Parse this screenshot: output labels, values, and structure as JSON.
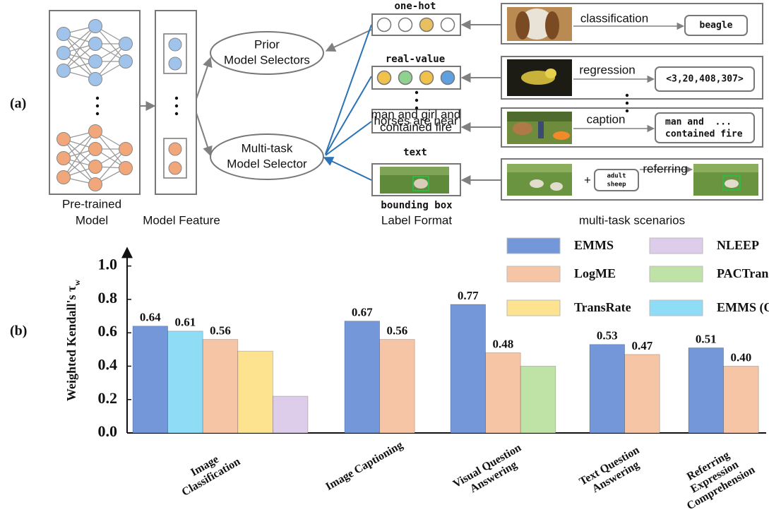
{
  "figure_labels": {
    "a": "(a)",
    "b": "(b)"
  },
  "diagram": {
    "pretrained_model": [
      "Pre-trained",
      "Model"
    ],
    "model_feature": "Model Feature",
    "prior_selectors": [
      "Prior",
      "Model Selectors"
    ],
    "multitask_selector": [
      "Multi-task",
      "Model Selector"
    ],
    "label_formats": {
      "one_hot": "one-hot",
      "real_value": "real-value",
      "text_example": [
        "man and girl and",
        "horses are near",
        "contained fire"
      ],
      "text": "text",
      "bounding_box": "bounding box",
      "title": "Label Format"
    },
    "scenarios": {
      "classification": {
        "task": "classification",
        "output": "beagle"
      },
      "regression": {
        "task": "regression",
        "output": "<3,20,408,307>"
      },
      "caption": {
        "task": "caption",
        "output": [
          "man and  ...",
          "contained fire"
        ]
      },
      "referring": {
        "task": "referring",
        "query": [
          "adult",
          "sheep"
        ]
      },
      "title": "multi-task scenarios"
    }
  },
  "chart_data": {
    "type": "bar",
    "y_label": "Weighted Kendall's τw",
    "categories": [
      "Image Classification",
      "Image Captioning",
      "Visual Question Answering",
      "Text Question Answering",
      "Referring Expression Comprehension"
    ],
    "series": [
      {
        "name": "EMMS",
        "color": "#7397d8",
        "values": [
          0.64,
          0.67,
          0.77,
          0.53,
          0.51
        ],
        "value_labels": [
          "0.64",
          "0.67",
          "0.77",
          "0.53",
          "0.51"
        ]
      },
      {
        "name": "EMMS (One)",
        "color": "#8fdcf6",
        "values": [
          0.61,
          null,
          null,
          null,
          null
        ],
        "value_labels": [
          "0.61",
          null,
          null,
          null,
          null
        ]
      },
      {
        "name": "LogME",
        "color": "#f6c5a6",
        "values": [
          0.56,
          0.56,
          0.48,
          0.47,
          0.4
        ],
        "value_labels": [
          "0.56",
          "0.56",
          "0.48",
          "0.47",
          "0.40"
        ]
      },
      {
        "name": "TransRate",
        "color": "#fde290",
        "values": [
          0.49,
          null,
          null,
          null,
          null
        ]
      },
      {
        "name": "NLEEP",
        "color": "#ddcdea",
        "values": [
          0.22,
          null,
          null,
          null,
          null
        ]
      },
      {
        "name": "PACTran",
        "color": "#bfe3a6",
        "values": [
          null,
          null,
          0.4,
          null,
          null
        ]
      }
    ],
    "ylim": [
      0,
      1.1
    ],
    "yticks": [
      {
        "value": 0,
        "label": "0.0"
      },
      0.2,
      0.4,
      0.6,
      0.8,
      {
        "value": 1,
        "label": "1.0"
      }
    ]
  }
}
